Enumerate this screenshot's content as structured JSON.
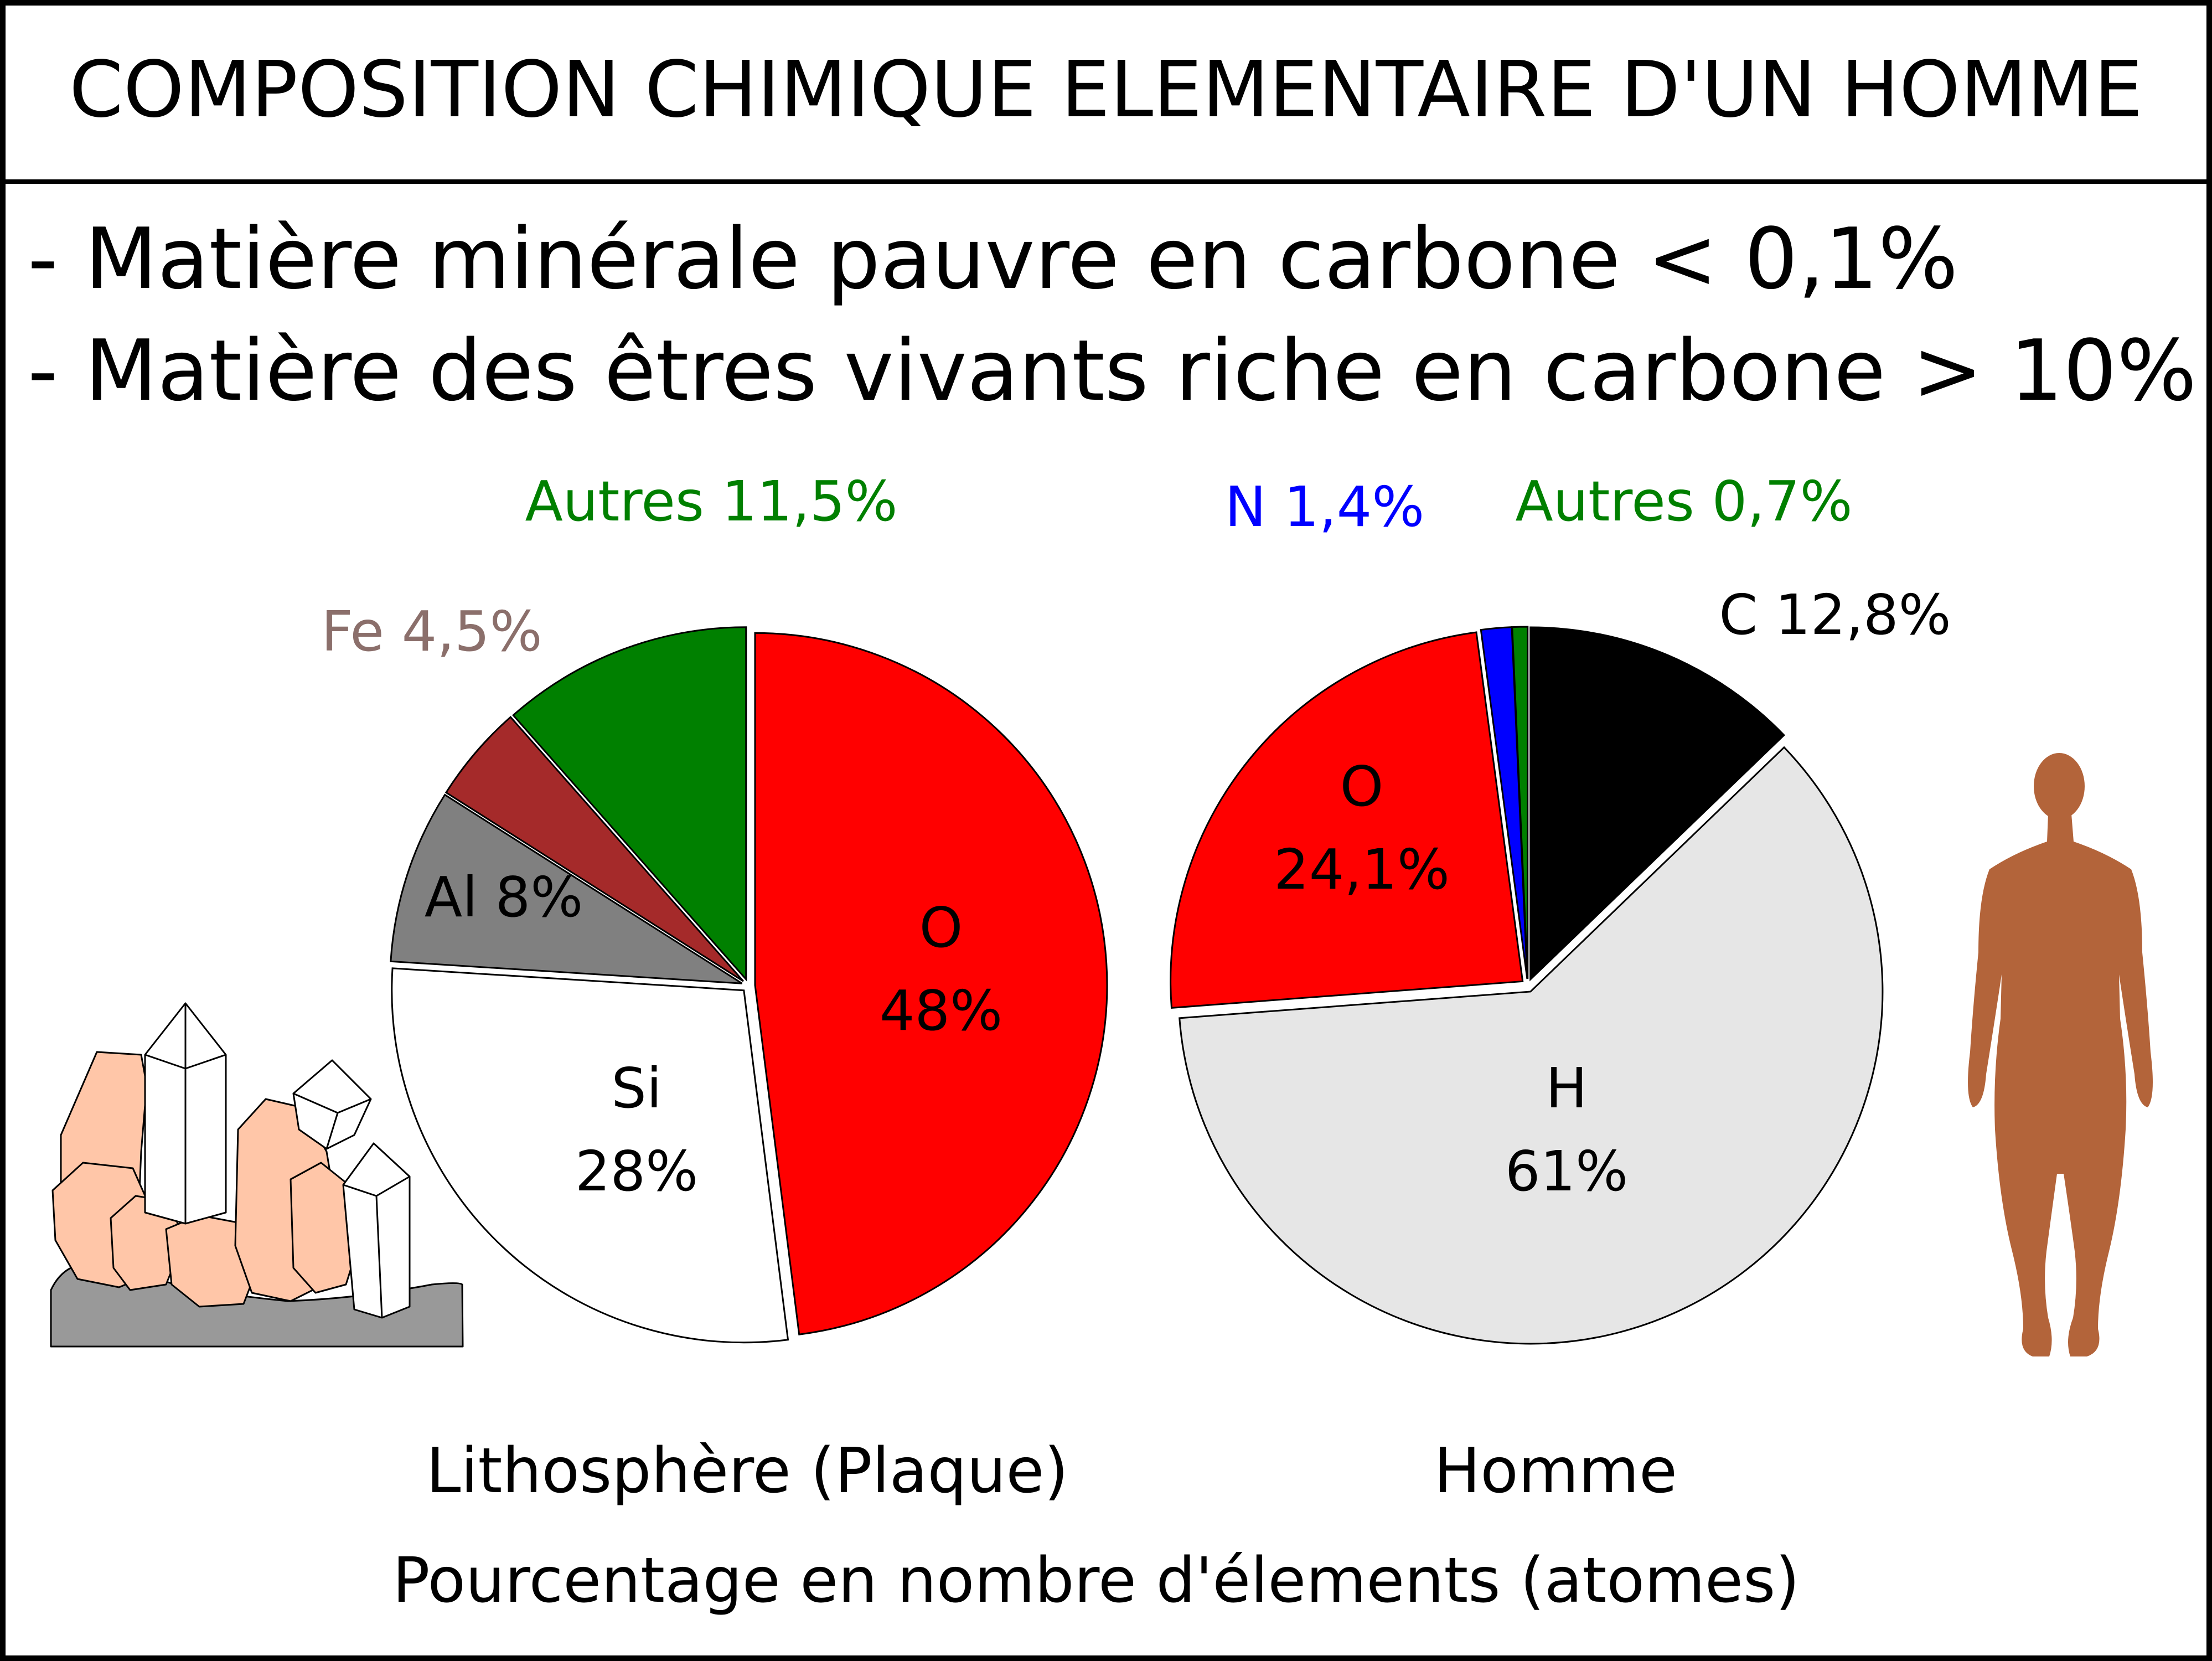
{
  "title": "COMPOSITION CHIMIQUE ELEMENTAIRE D'UN HOMME",
  "notes": [
    "- Matière minérale pauvre en carbone < 0,1%",
    "- Matière des êtres vivants riche en carbone > 10%"
  ],
  "footer": "Pourcentage en nombre d'élements (atomes)",
  "colors": {
    "oxygen": "#ff0000",
    "silicon": "#ffffff",
    "aluminium": "#808080",
    "iron": "#a52a2a",
    "others": "#008000",
    "hydrogen": "#e6e6e6",
    "nitrogen": "#0000ff",
    "carbon": "#000000",
    "iron_label": "#8b6f6b",
    "crystal_orange": "#ffc6a8",
    "rock_gray": "#999999",
    "human_silhouette": "#b3643a"
  },
  "icons": [
    "crystal-cluster-icon",
    "human-silhouette-icon"
  ],
  "chart_data": [
    {
      "type": "pie",
      "title": "Lithosphère (Plaque)",
      "slices": [
        {
          "label": "O",
          "value": 48,
          "value_label": "48%",
          "color": "#ff0000",
          "label_color": "#000000"
        },
        {
          "label": "Si",
          "value": 28,
          "value_label": "28%",
          "color": "#ffffff",
          "label_color": "#000000"
        },
        {
          "label": "Al",
          "value": 8,
          "value_label": "8%",
          "color": "#808080",
          "label_color": "#000000"
        },
        {
          "label": "Fe",
          "value": 4.5,
          "value_label": "4,5%",
          "color": "#a52a2a",
          "label_color": "#8b6f6b"
        },
        {
          "label": "Autres",
          "value": 11.5,
          "value_label": "11,5%",
          "color": "#008000",
          "label_color": "#008000"
        }
      ]
    },
    {
      "type": "pie",
      "title": "Homme",
      "slices": [
        {
          "label": "C",
          "value": 12.8,
          "value_label": "12,8%",
          "color": "#000000",
          "label_color": "#000000"
        },
        {
          "label": "H",
          "value": 61,
          "value_label": "61%",
          "color": "#e6e6e6",
          "label_color": "#000000"
        },
        {
          "label": "O",
          "value": 24.1,
          "value_label": "24,1%",
          "color": "#ff0000",
          "label_color": "#000000"
        },
        {
          "label": "N",
          "value": 1.4,
          "value_label": "1,4%",
          "color": "#0000ff",
          "label_color": "#0000ff"
        },
        {
          "label": "Autres",
          "value": 0.7,
          "value_label": "0,7%",
          "color": "#008000",
          "label_color": "#008000"
        }
      ]
    }
  ]
}
